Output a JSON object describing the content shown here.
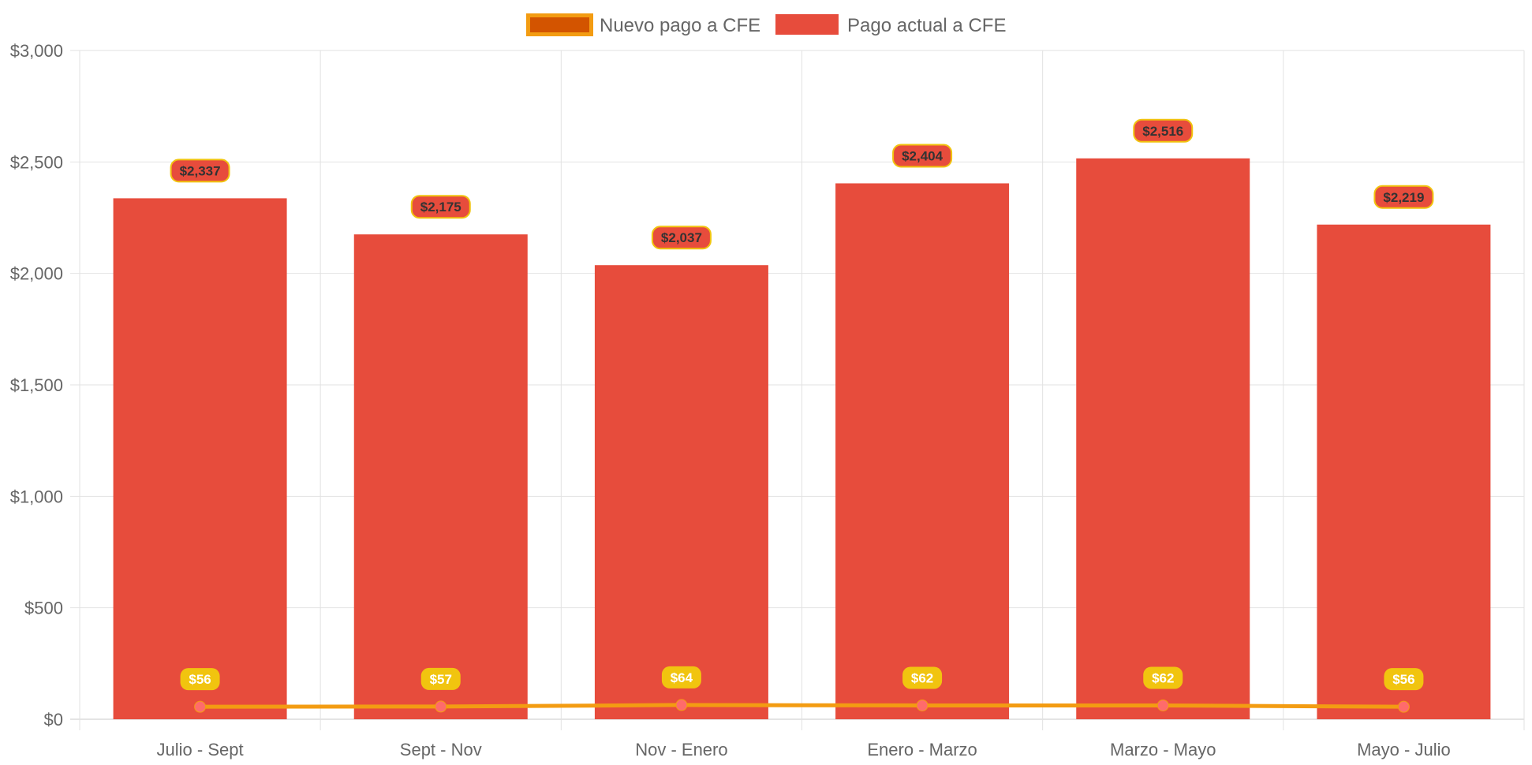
{
  "chart_data": {
    "type": "bar",
    "categories": [
      "Julio - Sept",
      "Sept - Nov",
      "Nov - Enero",
      "Enero - Marzo",
      "Marzo - Mayo",
      "Mayo - Julio"
    ],
    "series": [
      {
        "name": "Pago actual a CFE",
        "type": "bar",
        "values": [
          2337,
          2175,
          2037,
          2404,
          2516,
          2219
        ],
        "labels": [
          "$2,337",
          "$2,175",
          "$2,037",
          "$2,404",
          "$2,516",
          "$2,219"
        ],
        "color": "#e74c3c"
      },
      {
        "name": "Nuevo pago a CFE",
        "type": "line",
        "values": [
          56,
          57,
          64,
          62,
          62,
          56
        ],
        "labels": [
          "$56",
          "$57",
          "$64",
          "$62",
          "$62",
          "$56"
        ],
        "color": "#f39c12",
        "point_color": "#ff6b6b"
      }
    ],
    "y_ticks": [
      "$0",
      "$500",
      "$1,000",
      "$1,500",
      "$2,000",
      "$2,500",
      "$3,000"
    ],
    "ylim": [
      0,
      3000
    ],
    "grid": true,
    "legend_position": "top-center",
    "legend": [
      {
        "label": "Nuevo pago a CFE",
        "fill": "#d35400",
        "stroke": "#f39c12"
      },
      {
        "label": "Pago actual a CFE",
        "fill": "#e74c3c",
        "stroke": "#e74c3c"
      }
    ],
    "bar_label_style": {
      "fill": "#e74c3c",
      "stroke": "#f1c40f"
    },
    "line_label_style": {
      "fill": "#f1c40f"
    }
  }
}
